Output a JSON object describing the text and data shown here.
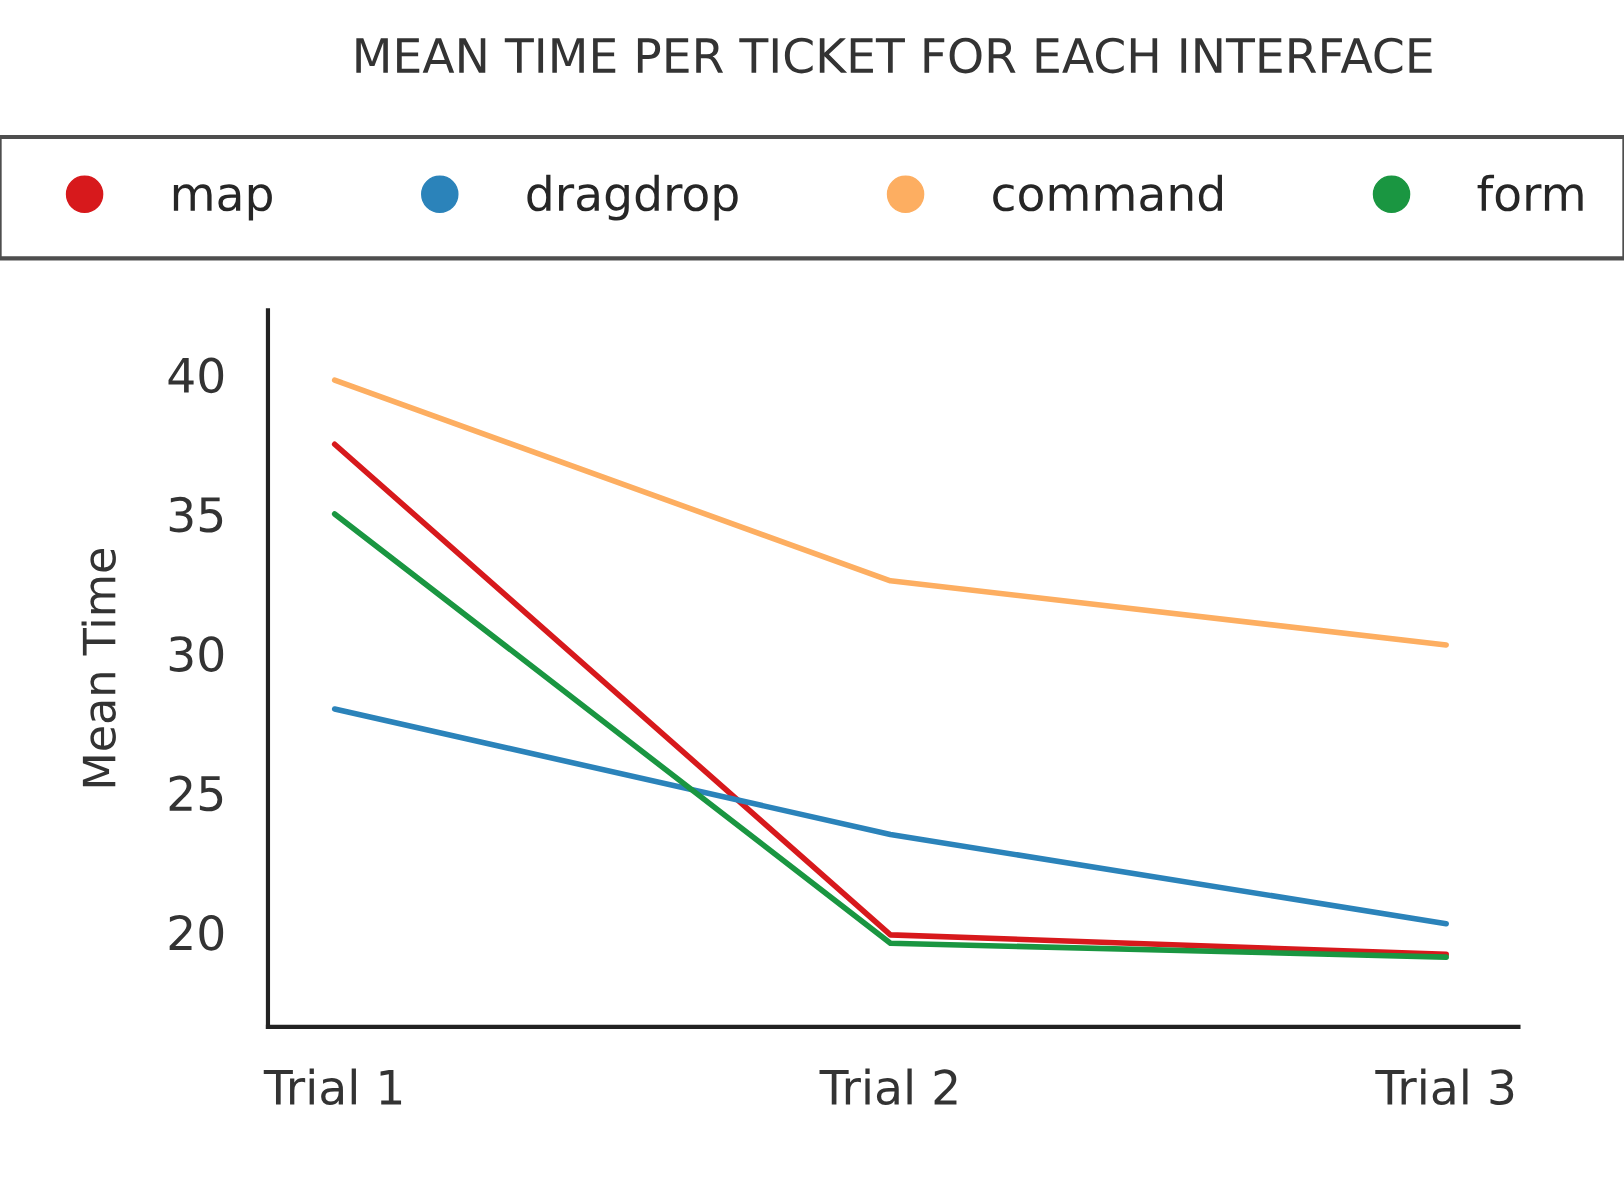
{
  "chart_data": {
    "type": "line",
    "title": "MEAN TIME PER TICKET FOR EACH INTERFACE",
    "ylabel": "Mean Time",
    "categories": [
      "Trial 1",
      "Trial 2",
      "Trial 3"
    ],
    "series": [
      {
        "name": "map",
        "color": "#d7191c",
        "values": [
          37.5,
          19.9,
          19.2
        ]
      },
      {
        "name": "dragdrop",
        "color": "#2b83ba",
        "values": [
          28.0,
          23.5,
          20.3
        ]
      },
      {
        "name": "command",
        "color": "#fdae61",
        "values": [
          39.8,
          32.6,
          30.3
        ]
      },
      {
        "name": "form",
        "color": "#1a9641",
        "values": [
          35.0,
          19.6,
          19.1
        ]
      }
    ],
    "ylim": [
      16.6,
      42.3
    ],
    "yticks": [
      20,
      25,
      30,
      35,
      40
    ],
    "grid": false,
    "legend": "top",
    "marker": "none",
    "line_style": "solid"
  }
}
